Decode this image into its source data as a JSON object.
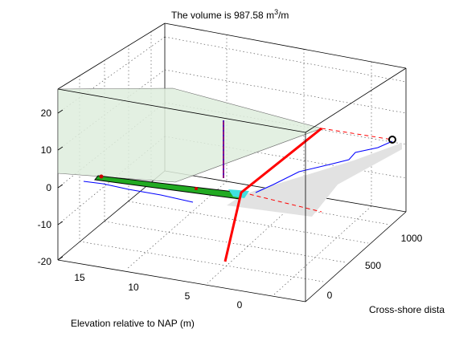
{
  "chart_data": {
    "type": "3d-line",
    "title_prefix": "The volume is 987.58 m",
    "title_sup": "3",
    "title_suffix": "/m",
    "xlabel": "Elevation relative to NAP (m)",
    "ylabel": "Cross-shore dista",
    "x_ticks": [
      "15",
      "10",
      "5",
      "0"
    ],
    "y_ticks": [
      "0",
      "500",
      "1000"
    ],
    "z_ticks": [
      "20",
      "10",
      "0",
      "-10",
      "-20"
    ],
    "grid": true,
    "colors": {
      "profile_line": "#0000ff",
      "vertical_marker": "#8b0080",
      "red_line": "#ff0000",
      "shelf_fill": "#22aa22",
      "shelf_edge": "#000000",
      "plane_fill": "#dfeedd",
      "shadow_fill": "#e2e2e2",
      "end_marker": "#000000"
    }
  }
}
